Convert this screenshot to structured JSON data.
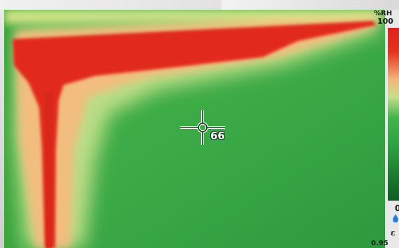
{
  "readout": {
    "value": "66"
  },
  "scale": {
    "unit": "%RH",
    "max": "100",
    "min": "0",
    "colors": [
      "#e0211e",
      "#f4b67b",
      "#c7de8a",
      "#3fb64b",
      "#0f5d21"
    ]
  },
  "emissivity": {
    "symbol": "ε",
    "value": "0.95"
  },
  "icons": {
    "crosshair": "crosshair-icon",
    "drop": "water-drop-icon"
  }
}
